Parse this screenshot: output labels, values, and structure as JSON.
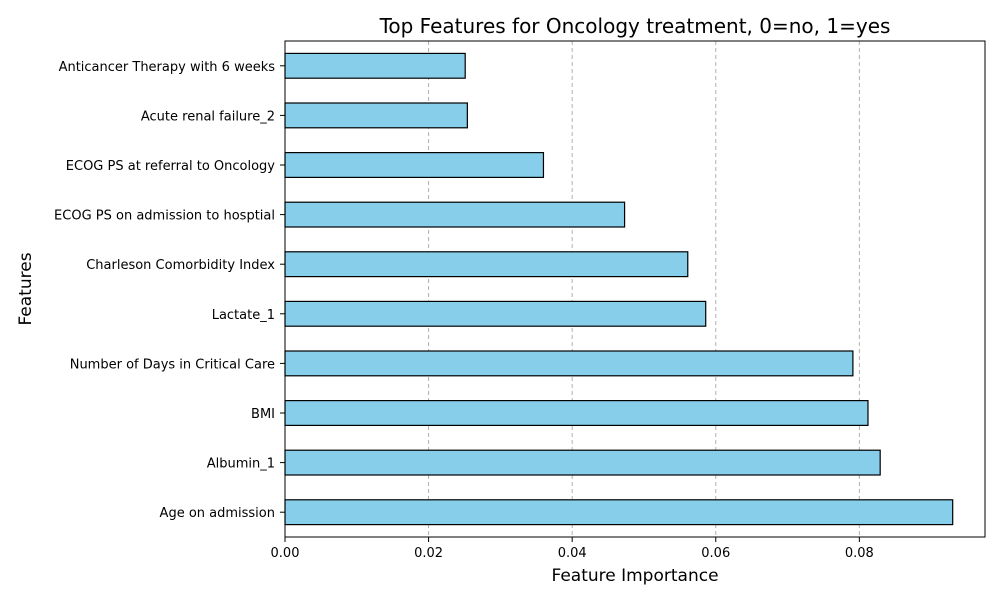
{
  "chart_data": {
    "type": "bar",
    "orientation": "horizontal",
    "title": "Top Features for Oncology treatment, 0=no, 1=yes",
    "xlabel": "Feature Importance",
    "ylabel": "Features",
    "categories": [
      "Age on admission",
      "Albumin_1",
      "BMI",
      "Number of Days in Critical Care",
      "Lactate_1",
      "Charleson Comorbidity Index",
      "ECOG PS on admission to hosptial",
      "ECOG PS at referral to Oncology",
      "Acute renal failure_2",
      "Anticancer Therapy with 6 weeks"
    ],
    "values": [
      0.093,
      0.0829,
      0.0812,
      0.0791,
      0.0586,
      0.0561,
      0.0473,
      0.036,
      0.0254,
      0.0251
    ],
    "xlim": [
      0,
      0.0975
    ],
    "xticks": [
      0.0,
      0.02,
      0.04,
      0.06,
      0.08
    ],
    "xtick_labels": [
      "0.00",
      "0.02",
      "0.04",
      "0.06",
      "0.08"
    ],
    "grid": "x-dashed",
    "bar_color": "#87CEEB",
    "edge_color": "#000000"
  }
}
